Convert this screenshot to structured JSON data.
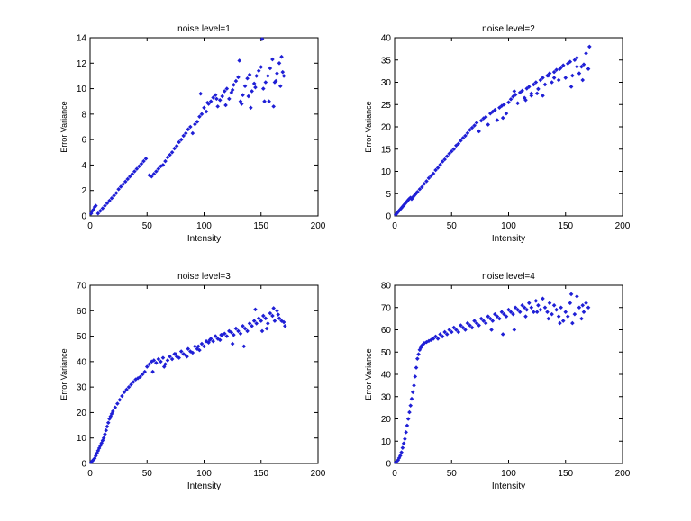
{
  "chart_data": [
    {
      "type": "scatter",
      "title": "noise level=1",
      "xlabel": "Intensity",
      "ylabel": "Error Variance",
      "xlim": [
        0,
        200
      ],
      "ylim": [
        0,
        14
      ],
      "xticks": [
        0,
        50,
        100,
        150,
        200
      ],
      "yticks": [
        0,
        2,
        4,
        6,
        8,
        10,
        12,
        14
      ],
      "marker_color": "#1f1fd6",
      "series": [
        {
          "x": [
            1,
            2,
            3,
            4,
            5,
            7,
            9,
            11,
            13,
            15,
            17,
            19,
            21,
            23,
            25,
            27,
            29,
            31,
            33,
            35,
            37,
            39,
            41,
            43,
            45,
            47,
            49,
            52,
            54,
            56,
            58,
            60,
            62,
            64,
            66,
            68,
            70,
            72,
            74,
            76,
            78,
            80,
            82,
            84,
            86,
            88,
            90,
            92,
            94,
            96,
            98,
            100,
            102,
            104,
            106,
            108,
            110,
            112,
            114,
            116,
            118,
            120,
            122,
            124,
            126,
            128,
            130,
            132,
            134,
            136,
            138,
            140,
            142,
            144,
            146,
            148,
            150,
            152,
            154,
            156,
            158,
            160,
            162,
            164,
            166,
            168,
            170,
            97,
            103,
            111,
            119,
            125,
            133,
            139,
            145,
            151,
            157,
            163,
            169,
            131,
            141,
            153,
            161,
            167
          ],
          "y": [
            0.2,
            0.4,
            0.5,
            0.7,
            0.8,
            0.2,
            0.4,
            0.6,
            0.8,
            1.0,
            1.2,
            1.4,
            1.6,
            1.8,
            2.1,
            2.3,
            2.5,
            2.7,
            2.9,
            3.1,
            3.3,
            3.5,
            3.7,
            3.9,
            4.1,
            4.3,
            4.5,
            3.2,
            3.1,
            3.3,
            3.5,
            3.7,
            3.9,
            4.0,
            4.3,
            4.6,
            4.8,
            5.0,
            5.3,
            5.5,
            5.8,
            6.0,
            6.3,
            6.5,
            6.8,
            7.0,
            6.5,
            7.2,
            7.4,
            7.8,
            8.0,
            8.5,
            8.2,
            8.8,
            9.0,
            9.3,
            9.5,
            8.6,
            9.1,
            9.4,
            9.8,
            10.0,
            9.2,
            9.7,
            10.3,
            10.6,
            10.9,
            9.0,
            9.5,
            10.2,
            10.8,
            11.1,
            9.8,
            10.4,
            11.0,
            11.4,
            11.7,
            10.0,
            10.5,
            11.0,
            11.6,
            12.3,
            10.5,
            11.2,
            12.0,
            12.5,
            11.0,
            9.6,
            8.9,
            9.2,
            8.7,
            9.9,
            8.8,
            9.4,
            10.1,
            13.9,
            9.0,
            10.6,
            11.3,
            12.2,
            8.5,
            9.0,
            8.6,
            10.2
          ]
        }
      ]
    },
    {
      "type": "scatter",
      "title": "noise level=2",
      "xlabel": "Intensity",
      "ylabel": "Error Variance",
      "xlim": [
        0,
        200
      ],
      "ylim": [
        0,
        40
      ],
      "xticks": [
        0,
        50,
        100,
        150,
        200
      ],
      "yticks": [
        0,
        5,
        10,
        15,
        20,
        25,
        30,
        35,
        40
      ],
      "marker_color": "#1f1fd6",
      "series": [
        {
          "x": [
            1,
            2,
            3,
            4,
            5,
            6,
            7,
            8,
            9,
            10,
            11,
            12,
            13,
            14,
            15,
            16,
            17,
            18,
            19,
            20,
            22,
            24,
            26,
            28,
            30,
            32,
            34,
            36,
            38,
            40,
            42,
            44,
            46,
            48,
            50,
            52,
            54,
            56,
            58,
            60,
            62,
            64,
            66,
            68,
            70,
            72,
            74,
            76,
            78,
            80,
            82,
            84,
            86,
            88,
            90,
            92,
            94,
            96,
            98,
            100,
            102,
            104,
            106,
            108,
            110,
            112,
            114,
            116,
            118,
            120,
            122,
            124,
            126,
            128,
            130,
            132,
            134,
            136,
            138,
            140,
            142,
            144,
            146,
            148,
            150,
            152,
            154,
            156,
            158,
            160,
            162,
            164,
            166,
            168,
            170,
            95,
            105,
            115,
            125,
            135,
            145,
            155,
            165,
            171,
            160,
            140,
            130,
            120
          ],
          "y": [
            0.3,
            0.6,
            0.9,
            1.2,
            1.5,
            1.8,
            2.1,
            2.4,
            2.7,
            3.0,
            3.3,
            3.6,
            3.9,
            4.1,
            3.8,
            4.2,
            4.5,
            4.8,
            5.1,
            5.4,
            6.0,
            6.5,
            7.2,
            7.8,
            8.5,
            9.0,
            9.5,
            10.3,
            10.8,
            11.5,
            12.2,
            12.7,
            13.4,
            14.0,
            14.5,
            15.0,
            15.8,
            16.2,
            16.9,
            17.5,
            18.0,
            18.6,
            19.3,
            19.8,
            20.3,
            20.9,
            19.0,
            21.4,
            21.9,
            22.2,
            20.5,
            23.0,
            23.4,
            23.8,
            21.5,
            24.3,
            24.7,
            25.0,
            23.0,
            25.5,
            26.2,
            26.8,
            27.2,
            25.3,
            27.7,
            28.1,
            26.5,
            28.6,
            29.0,
            27.0,
            29.5,
            30.0,
            28.5,
            30.5,
            31.0,
            29.5,
            31.5,
            32.0,
            30.0,
            32.3,
            32.8,
            30.5,
            33.3,
            33.8,
            31.0,
            34.2,
            34.6,
            31.5,
            35.0,
            35.5,
            32.0,
            33.5,
            34.0,
            36.5,
            33.0,
            22.0,
            28.0,
            26.0,
            27.5,
            31.5,
            33.0,
            29.0,
            30.5,
            38.0,
            33.5,
            31.0,
            27.0,
            27.5
          ]
        }
      ]
    },
    {
      "type": "scatter",
      "title": "noise level=3",
      "xlabel": "Intensity",
      "ylabel": "Error Variance",
      "xlim": [
        0,
        200
      ],
      "ylim": [
        0,
        70
      ],
      "xticks": [
        0,
        50,
        100,
        150,
        200
      ],
      "yticks": [
        0,
        10,
        20,
        30,
        40,
        50,
        60,
        70
      ],
      "marker_color": "#1f1fd6",
      "series": [
        {
          "x": [
            1,
            2,
            3,
            4,
            5,
            6,
            7,
            8,
            9,
            10,
            11,
            12,
            13,
            14,
            15,
            16,
            17,
            18,
            19,
            20,
            22,
            24,
            26,
            28,
            30,
            32,
            34,
            36,
            38,
            40,
            42,
            44,
            46,
            48,
            50,
            52,
            54,
            56,
            58,
            60,
            62,
            64,
            66,
            68,
            70,
            72,
            74,
            76,
            78,
            80,
            82,
            84,
            86,
            88,
            90,
            92,
            94,
            96,
            98,
            100,
            102,
            104,
            106,
            108,
            110,
            112,
            114,
            116,
            118,
            120,
            122,
            124,
            126,
            128,
            130,
            132,
            134,
            136,
            138,
            140,
            142,
            144,
            146,
            148,
            150,
            152,
            154,
            156,
            158,
            160,
            162,
            164,
            166,
            168,
            170,
            55,
            65,
            75,
            85,
            95,
            105,
            115,
            125,
            135,
            145,
            155,
            165,
            151,
            161,
            171
          ],
          "y": [
            0.5,
            1.0,
            1.5,
            2.0,
            3.0,
            4.0,
            5.0,
            6.0,
            7.0,
            8.0,
            9.0,
            10.0,
            11.5,
            13.0,
            14.5,
            16.0,
            17.5,
            18.5,
            19.5,
            20.5,
            22.0,
            23.5,
            25.0,
            26.5,
            28.0,
            29.0,
            30.0,
            31.0,
            32.0,
            33.0,
            33.5,
            34.0,
            35.0,
            36.0,
            38.0,
            39.0,
            40.0,
            40.5,
            39.5,
            41.0,
            40.0,
            41.5,
            39.0,
            40.5,
            42.0,
            41.0,
            43.0,
            42.0,
            41.5,
            44.0,
            43.0,
            42.5,
            45.0,
            44.0,
            43.5,
            46.0,
            45.0,
            44.5,
            47.0,
            46.0,
            48.0,
            47.5,
            49.0,
            48.0,
            50.0,
            49.0,
            48.5,
            50.5,
            51.0,
            50.0,
            52.0,
            51.5,
            50.5,
            53.0,
            52.0,
            51.0,
            54.0,
            53.0,
            52.0,
            55.0,
            54.0,
            56.0,
            55.0,
            57.0,
            56.0,
            58.0,
            57.0,
            55.0,
            59.0,
            58.0,
            56.0,
            60.0,
            57.0,
            56.0,
            55.5,
            36.0,
            38.0,
            43.0,
            42.0,
            46.0,
            48.5,
            50.5,
            47.0,
            46.0,
            60.5,
            53.0,
            58.5,
            52.0,
            61.0,
            54.0
          ]
        }
      ]
    },
    {
      "type": "scatter",
      "title": "noise level=4",
      "xlabel": "Intensity",
      "ylabel": "Error Variance",
      "xlim": [
        0,
        200
      ],
      "ylim": [
        0,
        80
      ],
      "xticks": [
        0,
        50,
        100,
        150,
        200
      ],
      "yticks": [
        0,
        10,
        20,
        30,
        40,
        50,
        60,
        70,
        80
      ],
      "marker_color": "#1f1fd6",
      "series": [
        {
          "x": [
            1,
            2,
            3,
            4,
            5,
            6,
            7,
            8,
            9,
            10,
            11,
            12,
            13,
            14,
            15,
            16,
            17,
            18,
            19,
            20,
            21,
            22,
            23,
            24,
            25,
            26,
            28,
            30,
            32,
            34,
            36,
            38,
            40,
            42,
            44,
            46,
            48,
            50,
            52,
            54,
            56,
            58,
            60,
            62,
            64,
            66,
            68,
            70,
            72,
            74,
            76,
            78,
            80,
            82,
            84,
            86,
            88,
            90,
            92,
            94,
            96,
            98,
            100,
            102,
            104,
            106,
            108,
            110,
            112,
            114,
            116,
            118,
            120,
            122,
            124,
            126,
            128,
            130,
            132,
            134,
            136,
            138,
            140,
            142,
            144,
            146,
            148,
            150,
            152,
            154,
            156,
            158,
            160,
            162,
            164,
            166,
            168,
            170,
            155,
            165,
            145,
            135,
            125,
            115,
            105,
            95,
            85
          ],
          "y": [
            0.5,
            1.0,
            1.5,
            2.5,
            3.5,
            5.0,
            7.0,
            9.0,
            11.0,
            14.0,
            17.0,
            20.0,
            23.0,
            26.0,
            29.0,
            32.0,
            35.0,
            39.0,
            43.0,
            47.0,
            49.0,
            51.0,
            52.0,
            53.0,
            53.5,
            54.0,
            54.5,
            55.0,
            55.5,
            56.0,
            57.0,
            56.0,
            58.0,
            57.0,
            59.0,
            58.0,
            60.0,
            59.0,
            61.0,
            60.0,
            59.0,
            62.0,
            61.0,
            60.0,
            63.0,
            62.0,
            61.0,
            64.0,
            63.0,
            62.0,
            65.0,
            64.0,
            63.0,
            66.0,
            65.0,
            64.0,
            67.0,
            66.0,
            65.0,
            68.0,
            67.0,
            66.0,
            69.0,
            68.0,
            67.0,
            70.0,
            69.0,
            68.0,
            71.0,
            70.0,
            69.0,
            72.0,
            70.0,
            68.0,
            73.0,
            71.0,
            69.0,
            74.0,
            70.0,
            68.0,
            72.0,
            67.0,
            71.0,
            69.0,
            66.0,
            70.0,
            64.0,
            68.0,
            66.0,
            72.0,
            63.0,
            67.0,
            75.0,
            70.0,
            65.0,
            68.0,
            72.0,
            70.0,
            76.0,
            71.0,
            63.0,
            65.0,
            68.0,
            66.0,
            60.0,
            58.0,
            60.0
          ]
        }
      ]
    }
  ]
}
